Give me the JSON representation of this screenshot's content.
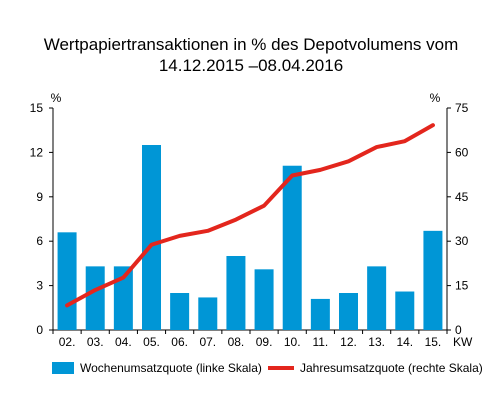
{
  "chart_data": {
    "type": "bar+line",
    "title_line1": "Wertpapiertransaktionen in % des Depotvolumens vom",
    "title_line2": "14.12.2015 –08.04.2016",
    "categories": [
      "02.",
      "03.",
      "04.",
      "05.",
      "06.",
      "07.",
      "08.",
      "09.",
      "10.",
      "11.",
      "12.",
      "13.",
      "14.",
      "15."
    ],
    "xlabel": "KW",
    "left_axis": {
      "unit": "%",
      "ylim": [
        0,
        15
      ],
      "ticks": [
        0,
        3,
        6,
        9,
        12,
        15
      ]
    },
    "right_axis": {
      "unit": "%",
      "ylim": [
        0,
        75
      ],
      "ticks": [
        0,
        15,
        30,
        45,
        60,
        75
      ]
    },
    "series": [
      {
        "name": "Wochenumsatzquote (linke Skala)",
        "type": "bar",
        "axis": "left",
        "color": "#0096d6",
        "values": [
          6.6,
          4.3,
          4.3,
          12.5,
          2.5,
          2.2,
          5.0,
          4.1,
          11.1,
          2.1,
          2.5,
          4.3,
          2.6,
          6.7
        ]
      },
      {
        "name": "Jahresumsatzquote (rechte Skala)",
        "type": "line",
        "axis": "right",
        "color": "#e3261d",
        "values": [
          8.3,
          13.5,
          17.7,
          28.8,
          31.8,
          33.5,
          37.3,
          42.0,
          52.2,
          54.1,
          57.0,
          61.8,
          63.8,
          69.2
        ]
      }
    ],
    "grid": false,
    "legend_position": "bottom"
  }
}
